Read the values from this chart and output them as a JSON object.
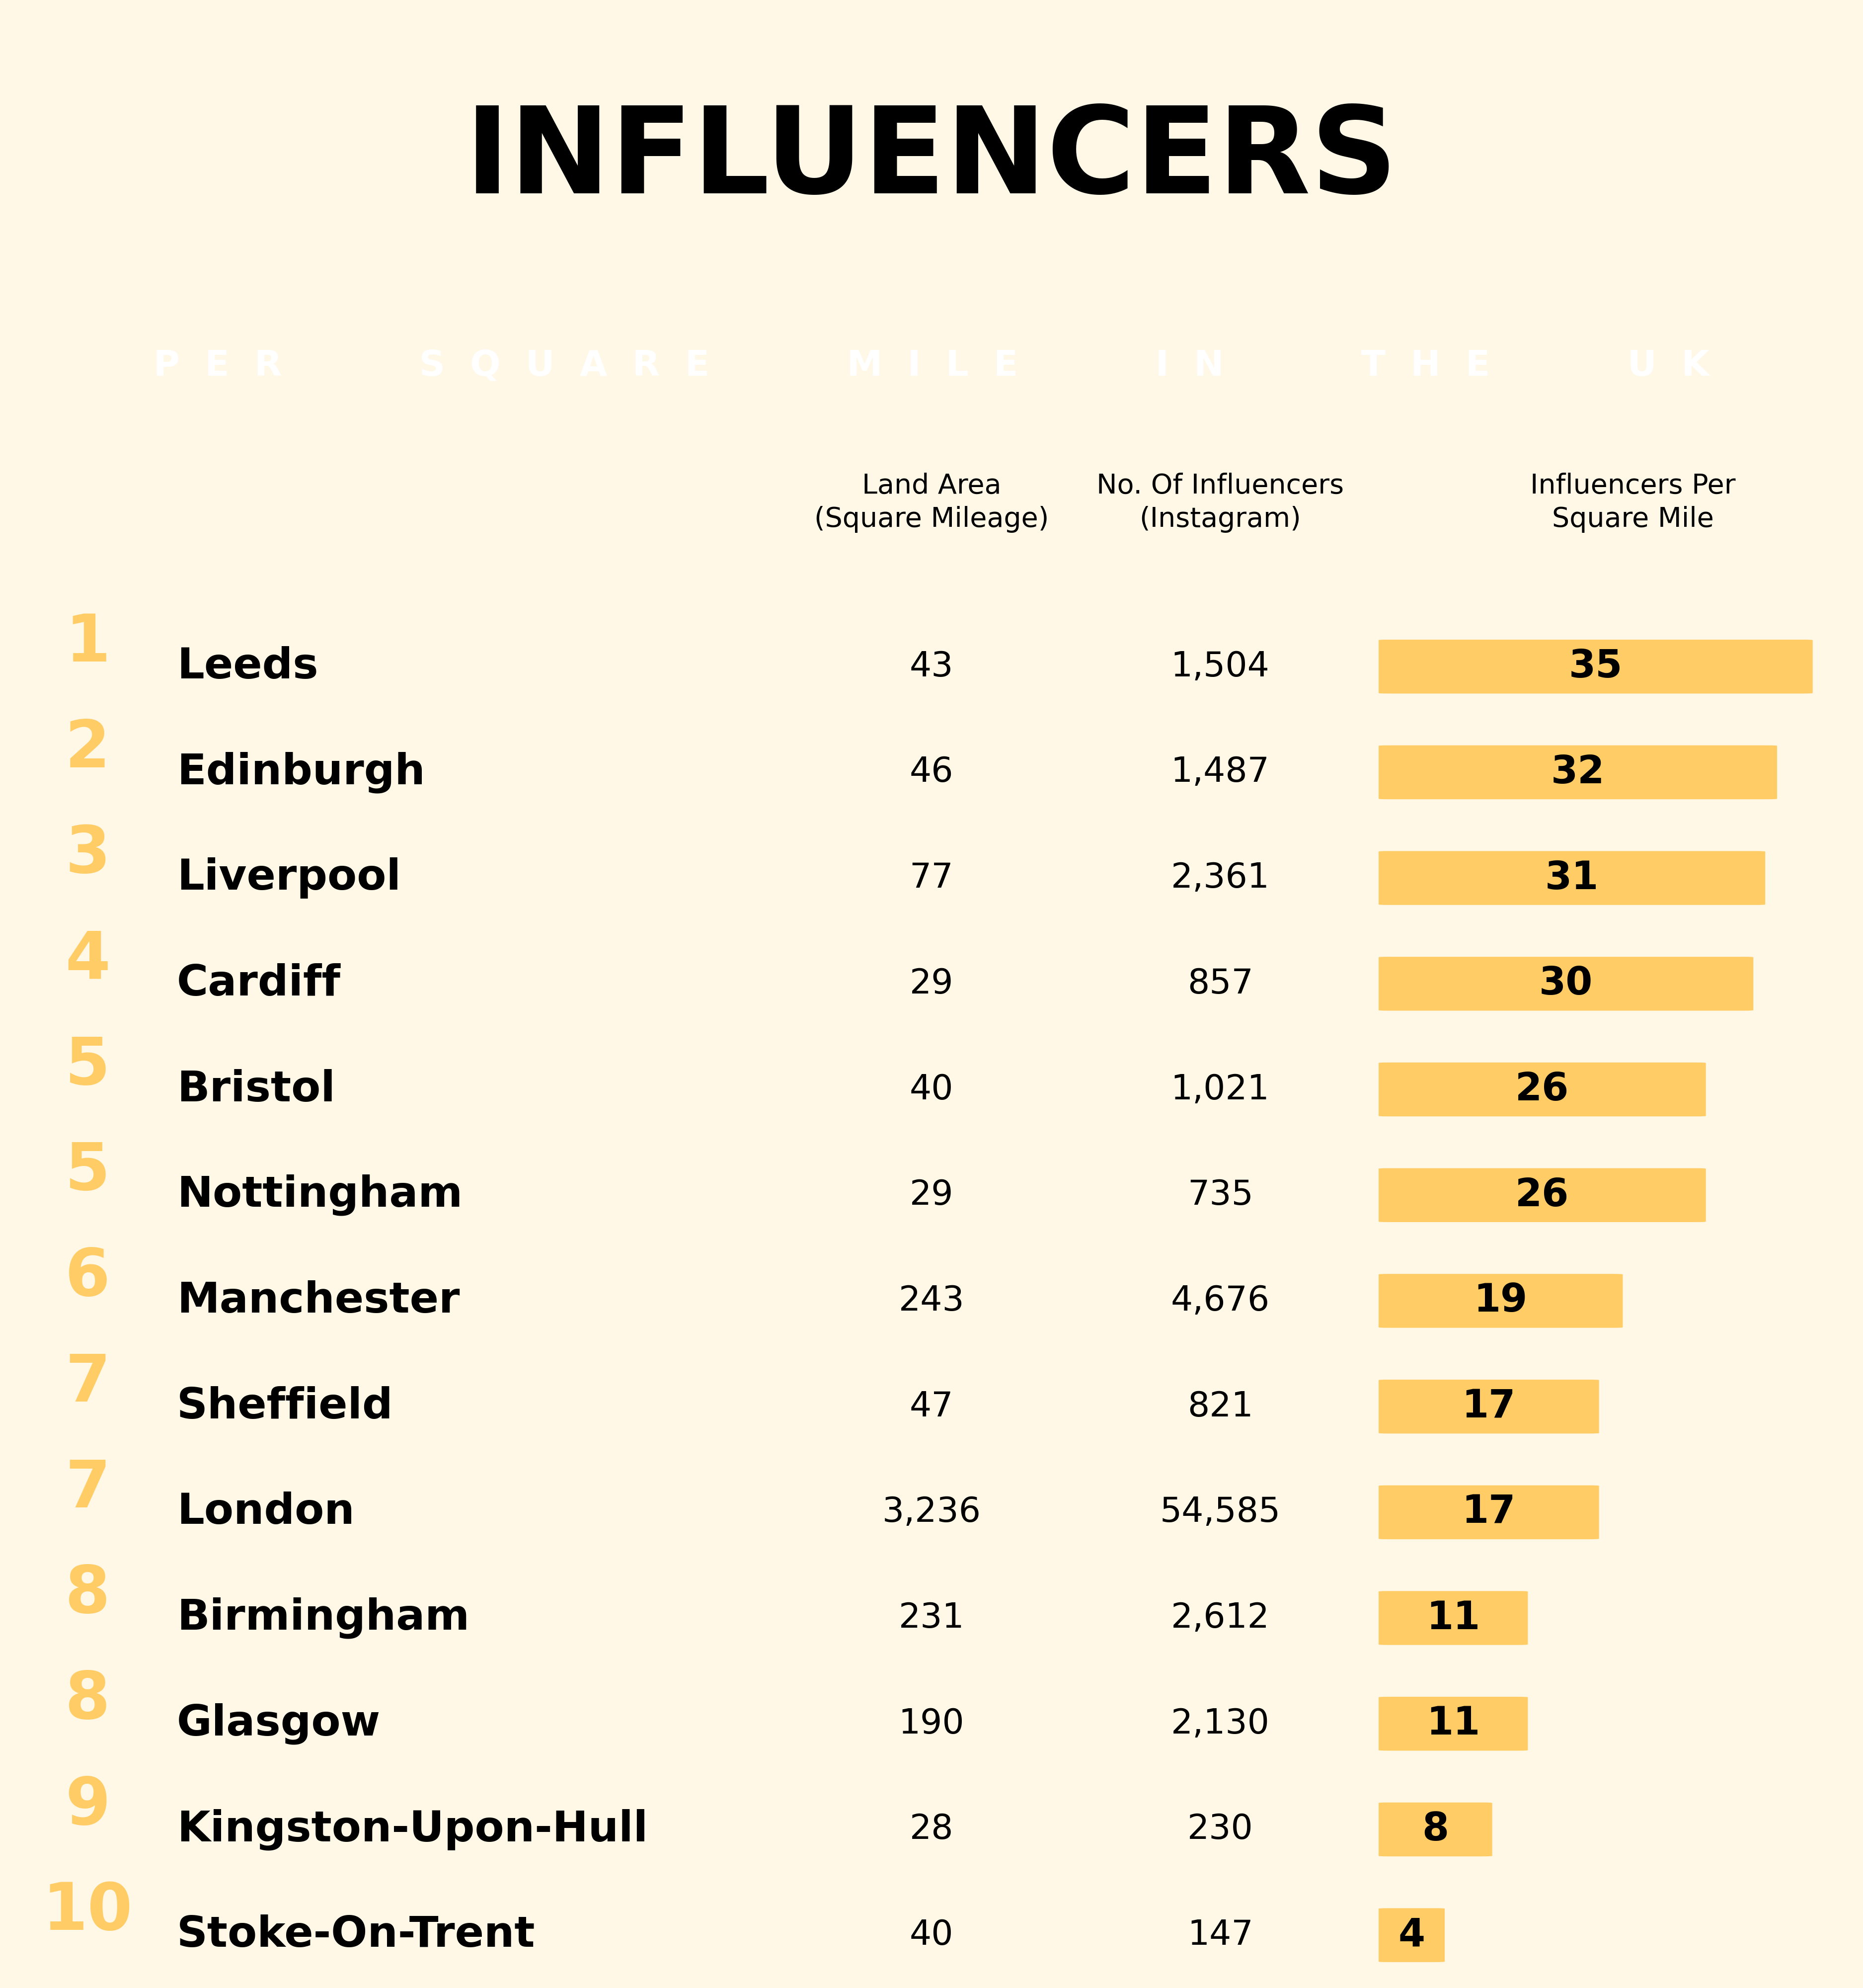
{
  "title_main": "INFLUENCERS",
  "title_sub": "PER SQUARE MILE IN THE UK",
  "bg_color_title": "#00FFCC",
  "bg_color_subtitle": "#000000",
  "bg_color_table": "#FFF8E7",
  "col_header_land": "Land Area\n(Square Mileage)",
  "col_header_influencers": "No. Of Influencers\n(Instagram)",
  "col_header_per_mile": "Influencers Per\nSquare Mile",
  "rows": [
    {
      "rank": "1",
      "city": "Leeds",
      "land": "43",
      "influencers": "1,504",
      "per_mile": 35,
      "per_mile_str": "35"
    },
    {
      "rank": "2",
      "city": "Edinburgh",
      "land": "46",
      "influencers": "1,487",
      "per_mile": 32,
      "per_mile_str": "32"
    },
    {
      "rank": "3",
      "city": "Liverpool",
      "land": "77",
      "influencers": "2,361",
      "per_mile": 31,
      "per_mile_str": "31"
    },
    {
      "rank": "4",
      "city": "Cardiff",
      "land": "29",
      "influencers": "857",
      "per_mile": 30,
      "per_mile_str": "30"
    },
    {
      "rank": "5",
      "city": "Bristol",
      "land": "40",
      "influencers": "1,021",
      "per_mile": 26,
      "per_mile_str": "26"
    },
    {
      "rank": "5",
      "city": "Nottingham",
      "land": "29",
      "influencers": "735",
      "per_mile": 26,
      "per_mile_str": "26"
    },
    {
      "rank": "6",
      "city": "Manchester",
      "land": "243",
      "influencers": "4,676",
      "per_mile": 19,
      "per_mile_str": "19"
    },
    {
      "rank": "7",
      "city": "Sheffield",
      "land": "47",
      "influencers": "821",
      "per_mile": 17,
      "per_mile_str": "17"
    },
    {
      "rank": "7",
      "city": "London",
      "land": "3,236",
      "influencers": "54,585",
      "per_mile": 17,
      "per_mile_str": "17"
    },
    {
      "rank": "8",
      "city": "Birmingham",
      "land": "231",
      "influencers": "2,612",
      "per_mile": 11,
      "per_mile_str": "11"
    },
    {
      "rank": "8",
      "city": "Glasgow",
      "land": "190",
      "influencers": "2,130",
      "per_mile": 11,
      "per_mile_str": "11"
    },
    {
      "rank": "9",
      "city": "Kingston-Upon-Hull",
      "land": "28",
      "influencers": "230",
      "per_mile": 8,
      "per_mile_str": "8"
    },
    {
      "rank": "10",
      "city": "Stoke-On-Trent",
      "land": "40",
      "influencers": "147",
      "per_mile": 4,
      "per_mile_str": "4"
    }
  ],
  "bar_color": "#FFCC66",
  "rank_color": "#FFCC66",
  "max_bar": 35,
  "title_fontsize": 175,
  "subtitle_fontsize": 52,
  "rank_fontsize": 82,
  "city_fontsize": 62,
  "data_fontsize": 50,
  "header_fontsize": 40,
  "bar_value_fontsize": 56
}
